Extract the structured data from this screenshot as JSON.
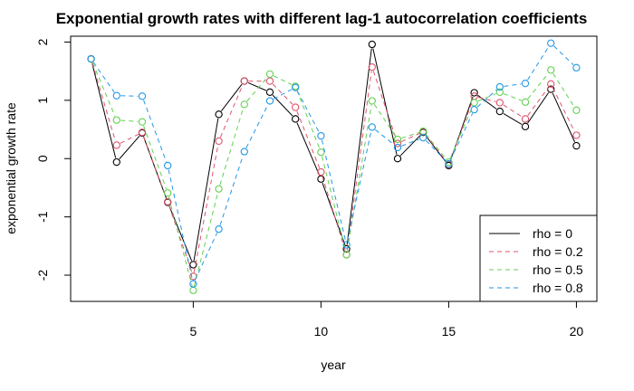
{
  "chart_data": {
    "type": "line",
    "title": "Exponential growth rates with different lag-1 autocorrelation coefficients",
    "xlabel": "year",
    "ylabel": "exponential growth rate",
    "xlim": [
      0.2,
      20.8
    ],
    "ylim": [
      -2.45,
      2.1
    ],
    "x_ticks": [
      5,
      10,
      15,
      20
    ],
    "y_ticks": [
      -2,
      -1,
      0,
      1,
      2
    ],
    "grid": false,
    "legend_position": "bottom-right",
    "x": [
      1,
      2,
      3,
      4,
      5,
      6,
      7,
      8,
      9,
      10,
      11,
      12,
      13,
      14,
      15,
      16,
      17,
      18,
      19,
      20
    ],
    "series": [
      {
        "name": "rho = 0",
        "color": "#000000",
        "dash": "solid",
        "values": [
          1.71,
          -0.06,
          0.44,
          -0.75,
          -1.82,
          0.76,
          1.33,
          1.14,
          0.68,
          -0.35,
          -1.55,
          1.96,
          0.0,
          0.45,
          -0.12,
          1.13,
          0.81,
          0.55,
          1.19,
          0.22
        ]
      },
      {
        "name": "rho = 0.2",
        "color": "#DF536B",
        "dash": "dashed",
        "values": [
          1.71,
          0.23,
          0.45,
          -0.74,
          -2.02,
          0.3,
          1.33,
          1.33,
          0.88,
          -0.23,
          -1.65,
          1.57,
          0.26,
          0.46,
          -0.1,
          1.07,
          0.96,
          0.68,
          1.28,
          0.4
        ]
      },
      {
        "name": "rho = 0.5",
        "color": "#61D04F",
        "dash": "dashed",
        "values": [
          1.71,
          0.66,
          0.63,
          -0.59,
          -2.26,
          -0.52,
          0.93,
          1.45,
          1.24,
          0.11,
          -1.65,
          0.99,
          0.33,
          0.47,
          -0.06,
          0.96,
          1.14,
          0.97,
          1.52,
          0.83
        ]
      },
      {
        "name": "rho = 0.8",
        "color": "#2297E6",
        "dash": "dashed",
        "values": [
          1.71,
          1.08,
          1.07,
          -0.12,
          -2.15,
          -1.21,
          0.12,
          0.99,
          1.22,
          0.39,
          -1.48,
          0.54,
          0.19,
          0.36,
          -0.09,
          0.84,
          1.23,
          1.29,
          1.98,
          1.56
        ]
      }
    ]
  }
}
